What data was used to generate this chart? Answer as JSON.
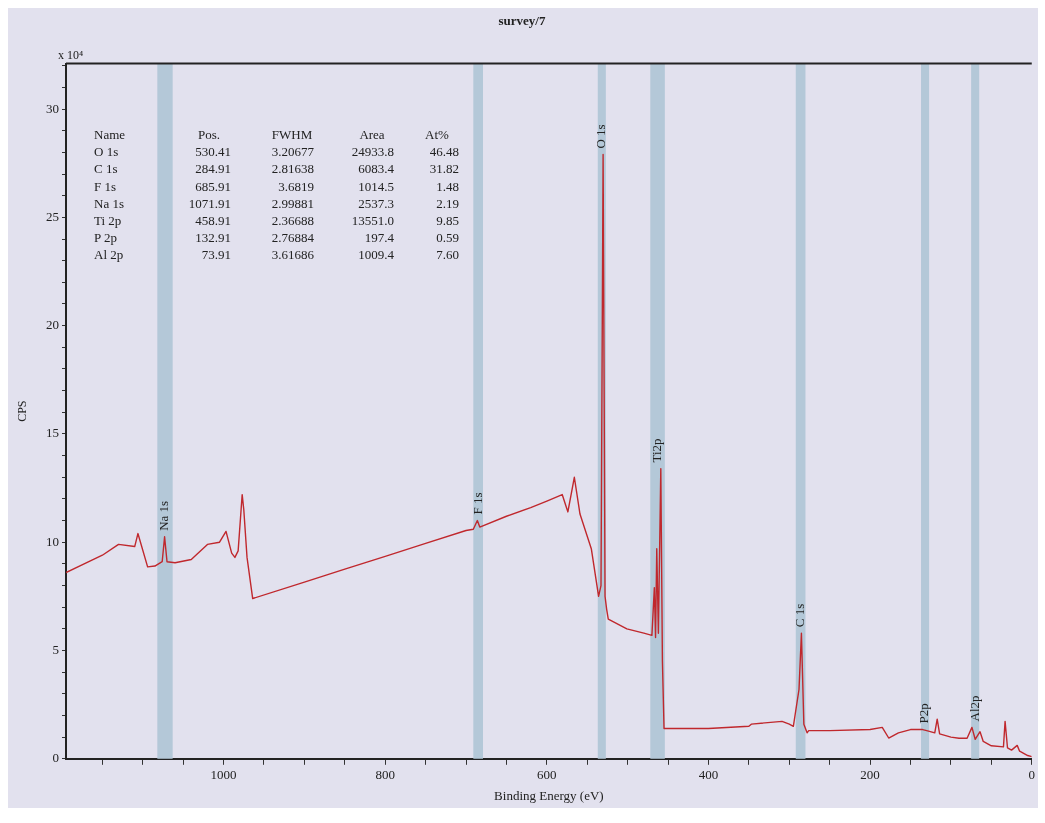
{
  "chart_data": {
    "type": "line",
    "title": "survey/7",
    "xlabel": "Binding Energy (eV)",
    "ylabel": "CPS",
    "xlim": [
      1195,
      0
    ],
    "xticks": [
      {
        "value": 1150,
        "label": null
      },
      {
        "value": 1100,
        "label": null
      },
      {
        "value": 1050,
        "label": null
      },
      1000,
      {
        "value": 950,
        "label": null
      },
      {
        "value": 900,
        "label": null
      },
      {
        "value": 850,
        "label": null
      },
      800,
      {
        "value": 750,
        "label": null
      },
      {
        "value": 700,
        "label": null
      },
      {
        "value": 650,
        "label": null
      },
      600,
      {
        "value": 550,
        "label": null
      },
      {
        "value": 500,
        "label": null
      },
      {
        "value": 450,
        "label": null
      },
      400,
      {
        "value": 350,
        "label": null
      },
      {
        "value": 300,
        "label": null
      },
      {
        "value": 250,
        "label": null
      },
      200,
      {
        "value": 150,
        "label": null
      },
      {
        "value": 100,
        "label": null
      },
      {
        "value": 50,
        "label": null
      },
      0
    ],
    "ylim": [
      0,
      32.1
    ],
    "yticks": [
      0,
      {
        "value": 1,
        "label": null
      },
      {
        "value": 2,
        "label": null
      },
      {
        "value": 3,
        "label": null
      },
      {
        "value": 4,
        "label": null
      },
      5,
      {
        "value": 6,
        "label": null
      },
      {
        "value": 7,
        "label": null
      },
      {
        "value": 8,
        "label": null
      },
      {
        "value": 9,
        "label": null
      },
      10,
      {
        "value": 11,
        "label": null
      },
      {
        "value": 12,
        "label": null
      },
      {
        "value": 13,
        "label": null
      },
      {
        "value": 14,
        "label": null
      },
      15,
      {
        "value": 16,
        "label": null
      },
      {
        "value": 17,
        "label": null
      },
      {
        "value": 18,
        "label": null
      },
      {
        "value": 19,
        "label": null
      },
      20,
      {
        "value": 21,
        "label": null
      },
      {
        "value": 22,
        "label": null
      },
      {
        "value": 23,
        "label": null
      },
      {
        "value": 24,
        "label": null
      },
      25,
      {
        "value": 26,
        "label": null
      },
      {
        "value": 27,
        "label": null
      },
      {
        "value": 28,
        "label": null
      },
      {
        "value": 29,
        "label": null
      },
      30,
      {
        "value": 31,
        "label": null
      },
      {
        "value": 32,
        "label": null
      }
    ],
    "grid": false,
    "legend": false,
    "marker": "none",
    "line_style": "solid",
    "series": [
      {
        "color": "#c0282d",
        "x": [
          1195,
          1170,
          1150,
          1130,
          1110,
          1106,
          1094,
          1085,
          1076,
          1073,
          1070,
          1060,
          1040,
          1020,
          1005,
          997,
          990,
          986,
          982,
          977,
          975,
          971,
          964,
          900,
          850,
          800,
          750,
          700,
          691,
          686,
          683,
          650,
          620,
          600,
          581,
          574,
          566,
          559,
          545,
          538,
          536,
          533,
          530.4,
          528,
          526,
          524,
          501,
          480,
          470,
          467,
          465.5,
          464,
          462,
          459,
          457,
          455,
          450,
          400,
          350,
          347,
          309,
          300,
          295,
          288,
          285,
          282,
          278,
          276,
          250,
          200,
          185,
          177,
          165,
          150,
          135,
          130,
          120,
          117,
          114,
          100,
          90,
          80,
          74,
          70,
          64,
          60,
          50,
          35,
          33,
          30,
          25,
          18,
          15,
          10,
          5,
          0
        ],
        "values": [
          8.6,
          9.05,
          9.4,
          9.9,
          9.8,
          10.4,
          8.86,
          8.9,
          9.1,
          10.25,
          9.1,
          9.05,
          9.2,
          9.9,
          10.0,
          10.5,
          9.5,
          9.3,
          9.6,
          12.2,
          11.5,
          9.3,
          7.4,
          8.16,
          8.76,
          9.35,
          9.95,
          10.54,
          10.6,
          11.0,
          10.7,
          11.2,
          11.6,
          11.9,
          12.2,
          11.4,
          13.0,
          11.3,
          9.7,
          8.0,
          7.5,
          8.0,
          27.9,
          7.5,
          6.9,
          6.45,
          6.0,
          5.8,
          5.7,
          7.9,
          5.6,
          9.7,
          5.8,
          13.4,
          4.5,
          1.4,
          1.4,
          1.4,
          1.5,
          1.6,
          1.73,
          1.6,
          1.5,
          3.2,
          5.8,
          1.6,
          1.2,
          1.3,
          1.3,
          1.35,
          1.45,
          0.96,
          1.2,
          1.35,
          1.35,
          1.3,
          1.2,
          1.83,
          1.15,
          1.0,
          0.95,
          0.95,
          1.45,
          0.9,
          1.25,
          0.8,
          0.6,
          0.55,
          1.73,
          0.5,
          0.4,
          0.62,
          0.35,
          0.25,
          0.15,
          0.1
        ]
      }
    ],
    "bands": [
      {
        "axis": "x",
        "from": 1082,
        "to": 1063,
        "label": "Na 1s",
        "color": "#b4c8d8"
      },
      {
        "axis": "x",
        "from": 691,
        "to": 679,
        "label": "F 1s",
        "color": "#b4c8d8"
      },
      {
        "axis": "x",
        "from": 537,
        "to": 527,
        "label": "O 1s",
        "color": "#b4c8d8"
      },
      {
        "axis": "x",
        "from": 472,
        "to": 454,
        "label": "Ti2p",
        "color": "#b4c8d8"
      },
      {
        "axis": "x",
        "from": 292,
        "to": 280,
        "label": "C 1s",
        "color": "#b4c8d8"
      },
      {
        "axis": "x",
        "from": 137,
        "to": 127,
        "label": "P2p",
        "color": "#b4c8d8"
      },
      {
        "axis": "x",
        "from": 75,
        "to": 65,
        "label": "Al2p",
        "color": "#b4c8d8"
      }
    ],
    "annotations": [
      "Name",
      "Pos.",
      "FWHM",
      "Area",
      "At%",
      "O 1s",
      "530.41",
      "3.20677",
      "24933.8",
      "46.48",
      "C 1s",
      "284.91",
      "2.81638",
      "6083.4",
      "31.82",
      "F 1s",
      "685.91",
      "3.6819",
      "1014.5",
      "1.48",
      "Na 1s",
      "1071.91",
      "2.99881",
      "2537.3",
      "2.19",
      "Ti 2p",
      "458.91",
      "2.36688",
      "13551.0",
      "9.85",
      "P 2p",
      "132.91",
      "2.76884",
      "197.4",
      "0.59",
      "Al 2p",
      "73.91",
      "3.61686",
      "1009.4",
      "7.60",
      "x 10⁴"
    ]
  }
}
